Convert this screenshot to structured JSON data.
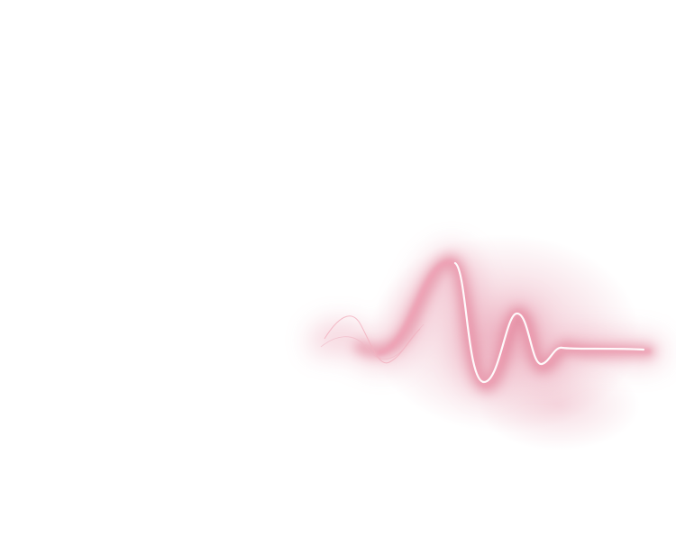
{
  "scene": {
    "background_color": "#ffffff",
    "subject": "pink-pulse-wave",
    "colors": {
      "glow": "#e58aa2",
      "deep_glow": "#d24c6c",
      "highlight": "#ffffff",
      "fine_line": "#f2b1c0"
    }
  }
}
